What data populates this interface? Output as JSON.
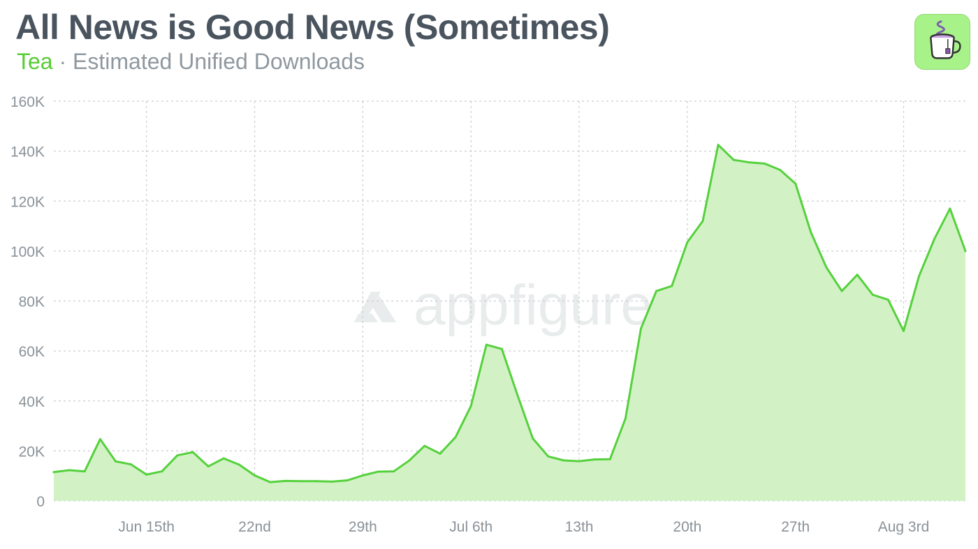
{
  "header": {
    "title": "All News is Good News (Sometimes)",
    "app_name": "Tea",
    "separator": "·",
    "metric": "Estimated Unified Downloads"
  },
  "watermark": "appfigures",
  "icons": {
    "app": "tea-cup-icon",
    "watermark_logo": "appfigures-logo-icon"
  },
  "colors": {
    "line": "#55d13c",
    "fill": "#d2f2c6",
    "grid": "#c9cdd0",
    "title": "#4a545e",
    "app_name": "#55cc33",
    "subtitle": "#8f989f",
    "icon_bg": "#a8f28a"
  },
  "chart_data": {
    "type": "area",
    "title": "All News is Good News (Sometimes)",
    "subtitle": "Tea · Estimated Unified Downloads",
    "xlabel": "",
    "ylabel": "",
    "ylim": [
      0,
      160000
    ],
    "y_ticks": [
      0,
      20000,
      40000,
      60000,
      80000,
      100000,
      120000,
      140000,
      160000
    ],
    "y_tick_labels": [
      "0",
      "20K",
      "40K",
      "60K",
      "80K",
      "100K",
      "120K",
      "140K",
      "160K"
    ],
    "x_tick_labels": [
      "Jun 15th",
      "22nd",
      "29th",
      "Jul 6th",
      "13th",
      "20th",
      "27th",
      "Aug 3rd"
    ],
    "x_tick_dates": [
      "2025-06-15",
      "2025-06-22",
      "2025-06-29",
      "2025-07-06",
      "2025-07-13",
      "2025-07-20",
      "2025-07-27",
      "2025-08-03"
    ],
    "grid": true,
    "legend": "none",
    "x": [
      "2025-06-09",
      "2025-06-10",
      "2025-06-11",
      "2025-06-12",
      "2025-06-13",
      "2025-06-14",
      "2025-06-15",
      "2025-06-16",
      "2025-06-17",
      "2025-06-18",
      "2025-06-19",
      "2025-06-20",
      "2025-06-21",
      "2025-06-22",
      "2025-06-23",
      "2025-06-24",
      "2025-06-25",
      "2025-06-26",
      "2025-06-27",
      "2025-06-28",
      "2025-06-29",
      "2025-06-30",
      "2025-07-01",
      "2025-07-02",
      "2025-07-03",
      "2025-07-04",
      "2025-07-05",
      "2025-07-06",
      "2025-07-07",
      "2025-07-08",
      "2025-07-09",
      "2025-07-10",
      "2025-07-11",
      "2025-07-12",
      "2025-07-13",
      "2025-07-14",
      "2025-07-15",
      "2025-07-16",
      "2025-07-17",
      "2025-07-18",
      "2025-07-19",
      "2025-07-20",
      "2025-07-21",
      "2025-07-22",
      "2025-07-23",
      "2025-07-24",
      "2025-07-25",
      "2025-07-26",
      "2025-07-27",
      "2025-07-28",
      "2025-07-29",
      "2025-07-30",
      "2025-07-31",
      "2025-08-01",
      "2025-08-02",
      "2025-08-03",
      "2025-08-04",
      "2025-08-05",
      "2025-08-06",
      "2025-08-07"
    ],
    "series": [
      {
        "values": [
          11500,
          12300,
          11800,
          24700,
          15800,
          14600,
          10500,
          11800,
          18200,
          19500,
          13800,
          17000,
          14500,
          10200,
          7500,
          8000,
          7900,
          7900,
          7700,
          8200,
          10200,
          11700,
          11800,
          16100,
          22000,
          18900,
          25500,
          38000,
          62500,
          60800,
          42500,
          25000,
          17800,
          16200,
          15900,
          16600,
          16700,
          33000,
          69000,
          84000,
          86000,
          103500,
          112000,
          142500,
          136500,
          135500,
          135000,
          132500,
          127000,
          107500,
          93500,
          84000,
          90500,
          82500,
          80500,
          68000,
          90000,
          105000,
          117000,
          100000
        ]
      }
    ]
  }
}
